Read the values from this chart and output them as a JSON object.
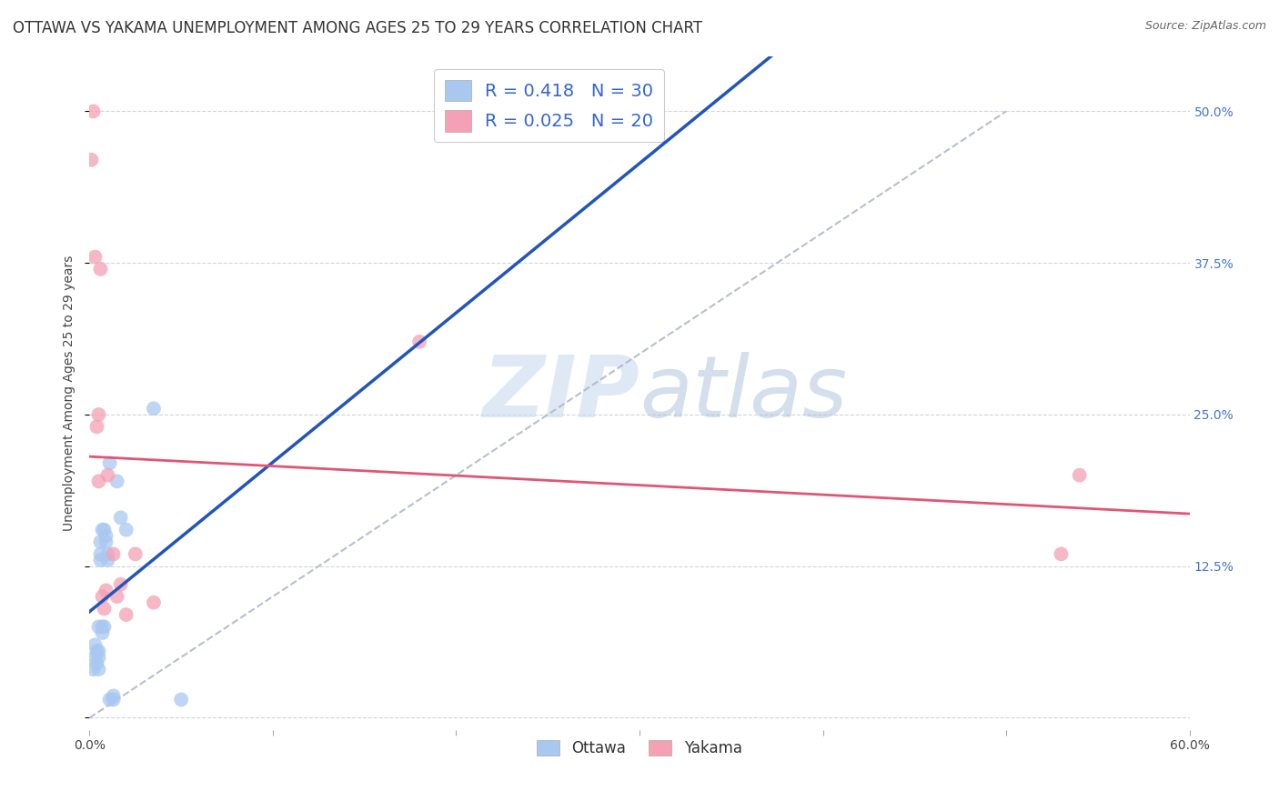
{
  "title": "OTTAWA VS YAKAMA UNEMPLOYMENT AMONG AGES 25 TO 29 YEARS CORRELATION CHART",
  "source": "Source: ZipAtlas.com",
  "ylabel": "Unemployment Among Ages 25 to 29 years",
  "xlim": [
    0.0,
    0.6
  ],
  "ylim": [
    -0.01,
    0.545
  ],
  "xticks": [
    0.0,
    0.1,
    0.2,
    0.3,
    0.4,
    0.5,
    0.6
  ],
  "yticks": [
    0.0,
    0.125,
    0.25,
    0.375,
    0.5
  ],
  "ytick_labels_right": [
    "",
    "12.5%",
    "25.0%",
    "37.5%",
    "50.0%"
  ],
  "xtick_labels": [
    "0.0%",
    "",
    "",
    "",
    "",
    "",
    "60.0%"
  ],
  "ottawa_R": 0.418,
  "ottawa_N": 30,
  "yakama_R": 0.025,
  "yakama_N": 20,
  "ottawa_color": "#a8c8f0",
  "yakama_color": "#f4a0b5",
  "ottawa_line_color": "#2255bb",
  "yakama_line_color": "#e05575",
  "ref_line_color": "#b0b8c8",
  "grid_color": "#d0d5dd",
  "background_color": "#ffffff",
  "ottawa_x": [
    0.002,
    0.003,
    0.003,
    0.004,
    0.004,
    0.005,
    0.005,
    0.005,
    0.005,
    0.006,
    0.006,
    0.006,
    0.007,
    0.007,
    0.007,
    0.008,
    0.008,
    0.009,
    0.009,
    0.01,
    0.01,
    0.011,
    0.011,
    0.013,
    0.013,
    0.015,
    0.017,
    0.02,
    0.035,
    0.05
  ],
  "ottawa_y": [
    0.04,
    0.05,
    0.06,
    0.045,
    0.055,
    0.04,
    0.05,
    0.055,
    0.075,
    0.13,
    0.135,
    0.145,
    0.07,
    0.075,
    0.155,
    0.075,
    0.155,
    0.145,
    0.15,
    0.13,
    0.135,
    0.21,
    0.015,
    0.015,
    0.018,
    0.195,
    0.165,
    0.155,
    0.255,
    0.015
  ],
  "yakama_x": [
    0.001,
    0.002,
    0.003,
    0.004,
    0.005,
    0.005,
    0.006,
    0.007,
    0.008,
    0.009,
    0.01,
    0.013,
    0.015,
    0.017,
    0.02,
    0.025,
    0.035,
    0.18,
    0.53,
    0.54
  ],
  "yakama_y": [
    0.46,
    0.5,
    0.38,
    0.24,
    0.25,
    0.195,
    0.37,
    0.1,
    0.09,
    0.105,
    0.2,
    0.135,
    0.1,
    0.11,
    0.085,
    0.135,
    0.095,
    0.31,
    0.135,
    0.2
  ],
  "watermark_zip": "ZIP",
  "watermark_atlas": "atlas",
  "title_fontsize": 12,
  "axis_label_fontsize": 10,
  "tick_fontsize": 10,
  "marker_size": 130,
  "legend_fontsize": 14
}
